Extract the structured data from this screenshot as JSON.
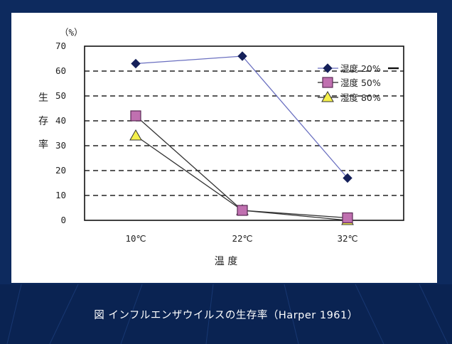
{
  "caption": "図 インフルエンザウイルスの生存率（Harper 1961）",
  "colors": {
    "background": "#0d2a5e",
    "panel": "#ffffff",
    "series_20": "#7b7fc4",
    "series_50": "#c070b0",
    "series_80": "#f5f04a",
    "caption_text": "#ffffff"
  },
  "chart_data": {
    "type": "line",
    "title": "",
    "categories": [
      "10℃",
      "22℃",
      "32℃"
    ],
    "xlabel": "温 度",
    "ylabel": "生存率",
    "yunit": "（%）",
    "ylim": [
      0,
      70
    ],
    "yticks": [
      0,
      10,
      20,
      30,
      40,
      50,
      60,
      70
    ],
    "grid": "horizontal-dashed",
    "legend_position": "top-right",
    "series": [
      {
        "name": "湿度 20%",
        "marker": "diamond",
        "values": [
          63,
          66,
          17
        ]
      },
      {
        "name": "湿度 50%",
        "marker": "square",
        "values": [
          42,
          4,
          1
        ]
      },
      {
        "name": "湿度 80%",
        "marker": "triangle",
        "values": [
          34,
          4,
          0
        ]
      }
    ]
  }
}
